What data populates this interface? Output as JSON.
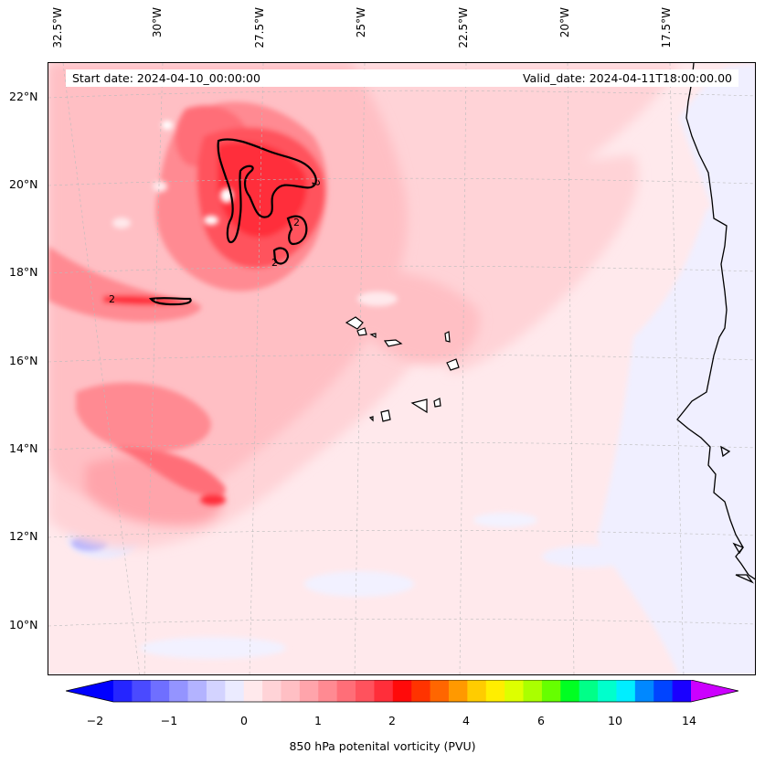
{
  "map": {
    "start_date": "Start date: 2024-04-10_00:00:00",
    "valid_date": "Valid_date: 2024-04-11T18:00:00.00",
    "contour_label": "2"
  },
  "axes": {
    "longitude_ticks": [
      "32.5°W",
      "30°W",
      "27.5°W",
      "25°W",
      "22.5°W",
      "20°W",
      "17.5°W"
    ],
    "latitude_ticks": [
      "22°N",
      "20°N",
      "18°N",
      "16°N",
      "14°N",
      "12°N",
      "10°N"
    ]
  },
  "colorbar": {
    "label": "850 hPa potenital vorticity (PVU)",
    "ticks": [
      "−2",
      "−1",
      "0",
      "1",
      "2",
      "4",
      "6",
      "10",
      "14"
    ],
    "colors": [
      "#0000ff",
      "#2525ff",
      "#4a4aff",
      "#6f6fff",
      "#9494ff",
      "#b3b3ff",
      "#d3d3ff",
      "#ebebff",
      "#ffe9ec",
      "#ffd3d7",
      "#ffbfc4",
      "#ffa4ab",
      "#ff8a92",
      "#ff6e78",
      "#ff525d",
      "#ff2e3a",
      "#ff0a0a",
      "#ff3300",
      "#ff6600",
      "#ff9900",
      "#ffcc00",
      "#ffee00",
      "#ddff00",
      "#aaff00",
      "#66ff00",
      "#00ff22",
      "#00ff88",
      "#00ffcc",
      "#00eeff",
      "#0088ff",
      "#0044ff",
      "#1a00ff",
      "#8800ff"
    ],
    "under_color": "#0000ff",
    "over_color": "#cc00ff"
  }
}
